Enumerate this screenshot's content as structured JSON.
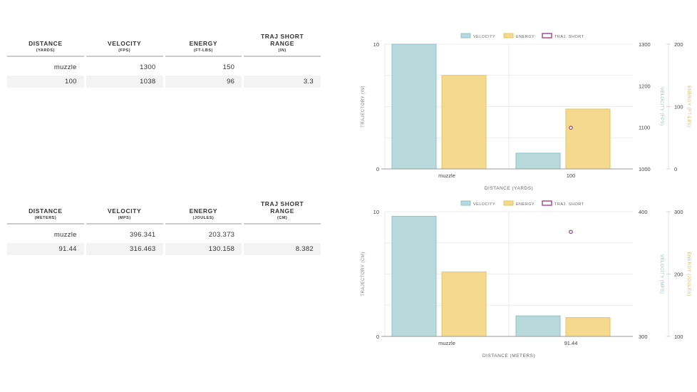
{
  "tables": [
    {
      "columns": [
        {
          "label": "DISTANCE",
          "unit": "(YARDS)"
        },
        {
          "label": "VELOCITY",
          "unit": "(FPS)"
        },
        {
          "label": "ENERGY",
          "unit": "(FT-LBS)"
        },
        {
          "label": "TRAJ SHORT RANGE",
          "unit": "(IN)"
        }
      ],
      "rows": [
        [
          "muzzle",
          "1300",
          "150",
          ""
        ],
        [
          "100",
          "1038",
          "96",
          "3.3"
        ]
      ]
    },
    {
      "columns": [
        {
          "label": "DISTANCE",
          "unit": "(METERS)"
        },
        {
          "label": "VELOCITY",
          "unit": "(MPS)"
        },
        {
          "label": "ENERGY",
          "unit": "(JOULES)"
        },
        {
          "label": "TRAJ SHORT RANGE",
          "unit": "(CM)"
        }
      ],
      "rows": [
        [
          "muzzle",
          "396.341",
          "203.373",
          ""
        ],
        [
          "91.44",
          "316.463",
          "130.158",
          "8.382"
        ]
      ]
    }
  ],
  "colors": {
    "velocity": "#b9dadc",
    "velocity_stroke": "#8fc3c6",
    "energy": "#f4d98e",
    "energy_stroke": "#e6c566",
    "traj": "#a3508f",
    "grid": "#e6e6e6",
    "axis": "#999999",
    "text": "#444444"
  },
  "chart_data": [
    {
      "type": "bar",
      "categories": [
        "muzzle",
        "100"
      ],
      "xlabel": "DISTANCE (YARDS)",
      "legend": [
        "VELOCITY",
        "ENERGY",
        "TRAJ. SHORT"
      ],
      "legend_position": "top-center",
      "series": [
        {
          "name": "VELOCITY",
          "axis": "velocity",
          "values": [
            1300,
            1038
          ]
        },
        {
          "name": "ENERGY",
          "axis": "energy",
          "values": [
            150,
            96
          ]
        },
        {
          "name": "TRAJ. SHORT",
          "axis": "traj",
          "type": "scatter",
          "values": [
            null,
            3.3
          ]
        }
      ],
      "axes": {
        "traj": {
          "label": "TRAJECTORY (IN)",
          "range": [
            0,
            10
          ],
          "ticks": [
            "0",
            "10"
          ]
        },
        "velocity": {
          "label": "VELOCITY (FPS)",
          "range": [
            1000,
            1300
          ],
          "ticks": [
            "1000",
            "1100",
            "1200",
            "1300"
          ]
        },
        "energy": {
          "label": "ENERGY (FT-LBS)",
          "range": [
            0,
            200
          ],
          "ticks": [
            "0",
            "100",
            "200"
          ]
        }
      }
    },
    {
      "type": "bar",
      "categories": [
        "muzzle",
        "91.44"
      ],
      "xlabel": "DISTANCE (METERS)",
      "legend": [
        "VELOCITY",
        "ENERGY",
        "TRAJ. SHORT"
      ],
      "legend_position": "top-center",
      "series": [
        {
          "name": "VELOCITY",
          "axis": "velocity",
          "values": [
            396.341,
            316.463
          ]
        },
        {
          "name": "ENERGY",
          "axis": "energy",
          "values": [
            203.373,
            130.158
          ]
        },
        {
          "name": "TRAJ. SHORT",
          "axis": "traj",
          "type": "scatter",
          "values": [
            null,
            8.382
          ]
        }
      ],
      "axes": {
        "traj": {
          "label": "TRAJECTORY (CM)",
          "range": [
            0,
            10
          ],
          "ticks": [
            "0",
            "10"
          ]
        },
        "velocity": {
          "label": "VELOCITY (MPS)",
          "range": [
            300,
            400
          ],
          "ticks": [
            "300",
            "400"
          ]
        },
        "energy": {
          "label": "ENERGY (JOULES)",
          "range": [
            100,
            300
          ],
          "ticks": [
            "100",
            "200",
            "300"
          ]
        }
      }
    }
  ]
}
